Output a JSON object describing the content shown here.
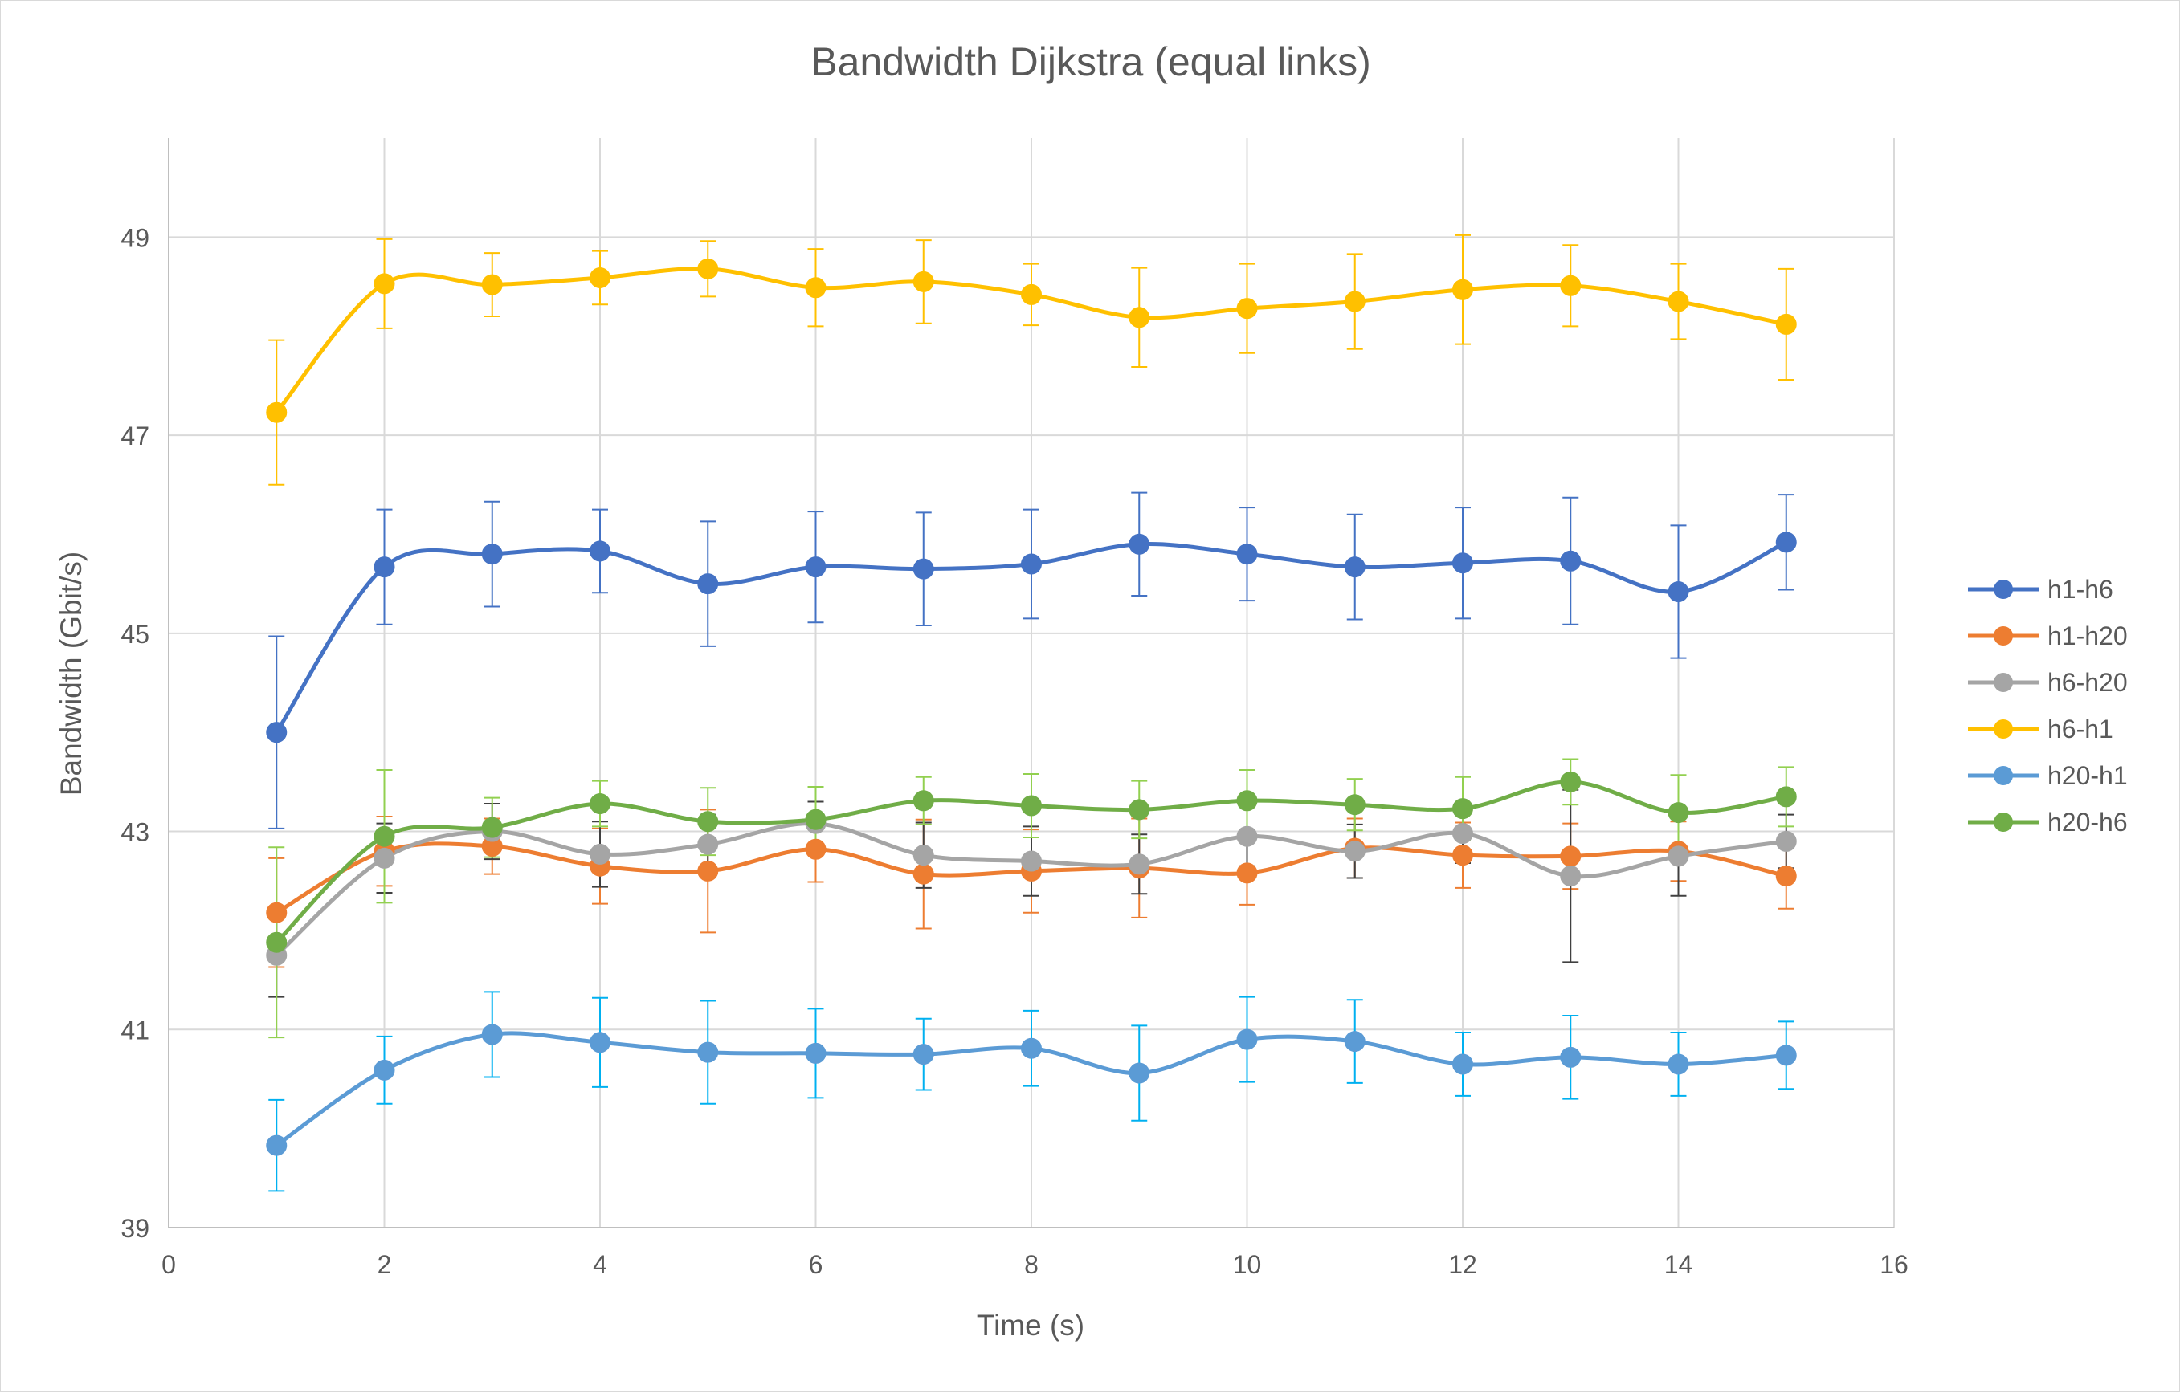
{
  "chart_data": {
    "type": "line",
    "title": "Bandwidth Dijkstra (equal links)",
    "xlabel": "Time (s)",
    "ylabel": "Bandwidth (Gbit/s)",
    "xlim": [
      0,
      16
    ],
    "ylim": [
      39,
      50
    ],
    "xticks": [
      0,
      2,
      4,
      6,
      8,
      10,
      12,
      14,
      16
    ],
    "yticks": [
      39,
      41,
      43,
      45,
      47,
      49
    ],
    "grid": true,
    "smoothed": true,
    "legend_position": "right",
    "x": [
      1,
      2,
      3,
      4,
      5,
      6,
      7,
      8,
      9,
      10,
      11,
      12,
      13,
      14,
      15
    ],
    "series": [
      {
        "name": "h1-h6",
        "color": "#4472C4",
        "values": [
          44.0,
          45.67,
          45.8,
          45.83,
          45.5,
          45.67,
          45.65,
          45.7,
          45.9,
          45.8,
          45.67,
          45.71,
          45.73,
          45.42,
          45.92
        ],
        "err": [
          0.97,
          0.58,
          0.53,
          0.42,
          0.63,
          0.56,
          0.57,
          0.55,
          0.52,
          0.47,
          0.53,
          0.56,
          0.64,
          0.67,
          0.48
        ],
        "err_color": "#4472C4"
      },
      {
        "name": "h1-h20",
        "color": "#ED7D31",
        "values": [
          42.18,
          42.8,
          42.85,
          42.65,
          42.6,
          42.82,
          42.57,
          42.6,
          42.63,
          42.58,
          42.83,
          42.76,
          42.75,
          42.8,
          42.55
        ],
        "err": [
          0.55,
          0.35,
          0.28,
          0.38,
          0.62,
          0.33,
          0.55,
          0.42,
          0.5,
          0.32,
          0.3,
          0.33,
          0.33,
          0.3,
          0.33
        ],
        "err_color": "#ED7D31"
      },
      {
        "name": "h6-h20",
        "color": "#A5A5A5",
        "values": [
          41.75,
          42.73,
          43.0,
          42.77,
          42.87,
          43.08,
          42.76,
          42.7,
          42.67,
          42.95,
          42.8,
          42.98,
          42.55,
          42.75,
          42.9
        ],
        "err": [
          0.42,
          0.35,
          0.28,
          0.33,
          0.3,
          0.22,
          0.33,
          0.35,
          0.3,
          0.3,
          0.27,
          0.3,
          0.87,
          0.4,
          0.27
        ],
        "err_color": "#404040"
      },
      {
        "name": "h6-h1",
        "color": "#FFC000",
        "values": [
          47.23,
          48.53,
          48.52,
          48.59,
          48.68,
          48.49,
          48.55,
          48.42,
          48.19,
          48.28,
          48.35,
          48.47,
          48.51,
          48.35,
          48.12
        ],
        "err": [
          0.73,
          0.45,
          0.32,
          0.27,
          0.28,
          0.39,
          0.42,
          0.31,
          0.5,
          0.45,
          0.48,
          0.55,
          0.41,
          0.38,
          0.56
        ],
        "err_color": "#FFC000"
      },
      {
        "name": "h20-h1",
        "color": "#5B9BD5",
        "values": [
          39.83,
          40.59,
          40.95,
          40.87,
          40.77,
          40.76,
          40.75,
          40.81,
          40.56,
          40.9,
          40.88,
          40.65,
          40.72,
          40.65,
          40.74
        ],
        "err": [
          0.46,
          0.34,
          0.43,
          0.45,
          0.52,
          0.45,
          0.36,
          0.38,
          0.48,
          0.43,
          0.42,
          0.32,
          0.42,
          0.32,
          0.34
        ],
        "err_color": "#00B0F0"
      },
      {
        "name": "h20-h6",
        "color": "#70AD47",
        "values": [
          41.88,
          42.95,
          43.04,
          43.28,
          43.1,
          43.12,
          43.31,
          43.26,
          43.22,
          43.31,
          43.27,
          43.23,
          43.5,
          43.19,
          43.35
        ],
        "err": [
          0.96,
          0.67,
          0.3,
          0.23,
          0.34,
          0.33,
          0.24,
          0.32,
          0.29,
          0.31,
          0.26,
          0.32,
          0.23,
          0.38,
          0.3
        ],
        "err_color": "#92D050"
      }
    ]
  }
}
